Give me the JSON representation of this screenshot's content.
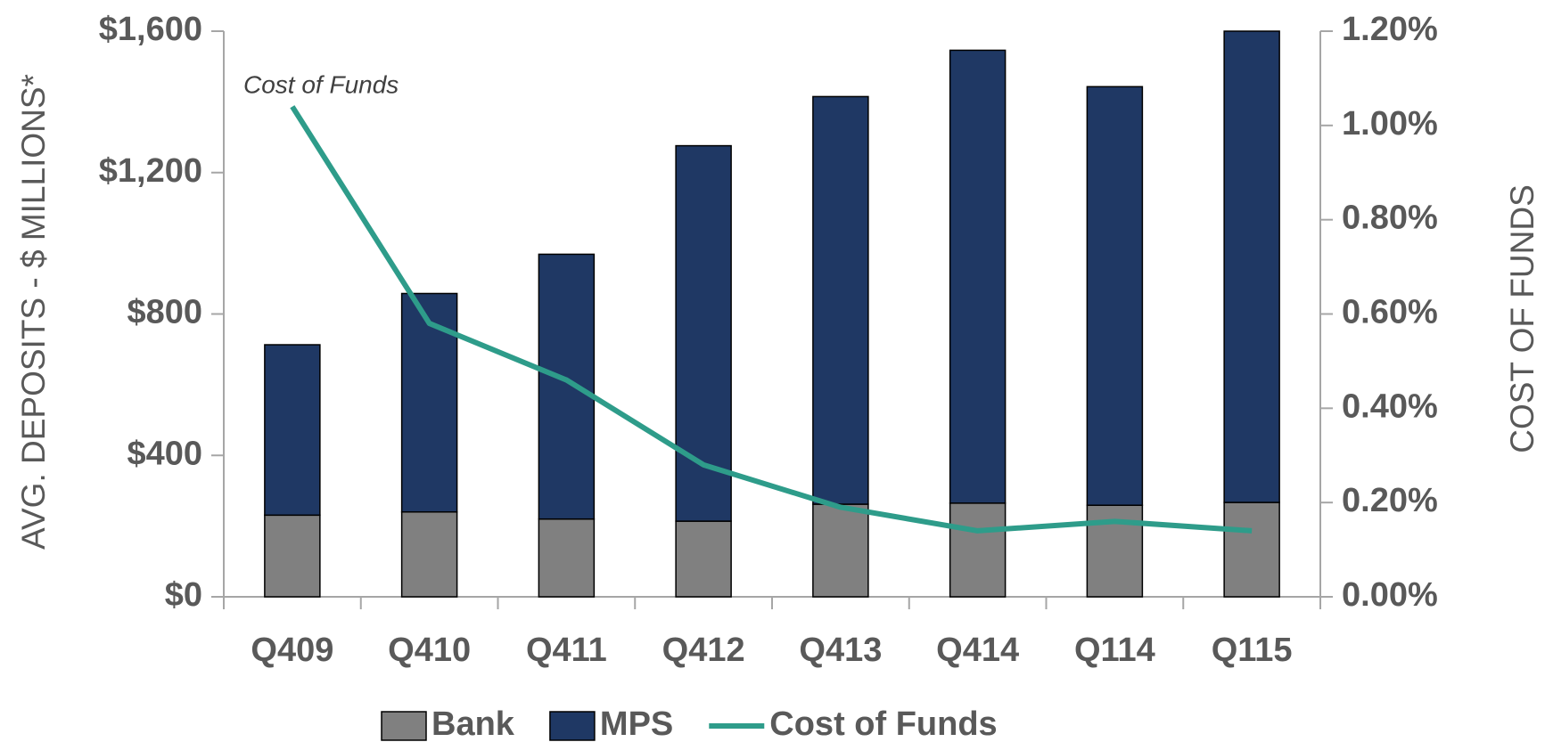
{
  "chart_data": {
    "type": "bar",
    "stacked": true,
    "categories": [
      "Q409",
      "Q410",
      "Q411",
      "Q412",
      "Q413",
      "Q414",
      "Q114",
      "Q115"
    ],
    "series": [
      {
        "name": "Bank",
        "type": "bar",
        "color": "#808080",
        "values": [
          231,
          240,
          220,
          214,
          262,
          265,
          259,
          267
        ]
      },
      {
        "name": "MPS",
        "type": "bar",
        "color": "#1f3864",
        "values": [
          482,
          618,
          749,
          1062,
          1153,
          1281,
          1184,
          1333
        ]
      },
      {
        "name": "Cost of Funds",
        "type": "line",
        "axis": "y2",
        "color": "#2e9c8a",
        "values": [
          1.04,
          0.58,
          0.46,
          0.28,
          0.19,
          0.14,
          0.16,
          0.14
        ]
      }
    ],
    "ylabel": "AVG. DEPOSITS - $ MILLIONS*",
    "y2label": "COST OF FUNDS",
    "annotation": "Cost of Funds",
    "ylim": [
      0,
      1600
    ],
    "yticks": [
      {
        "value": 0,
        "label": "$0"
      },
      {
        "value": 400,
        "label": "$400"
      },
      {
        "value": 800,
        "label": "$800"
      },
      {
        "value": 1200,
        "label": "$1,200"
      },
      {
        "value": 1600,
        "label": "$1,600"
      }
    ],
    "y2lim": [
      0,
      1.2
    ],
    "y2ticks": [
      {
        "value": 0,
        "label": "0.00%"
      },
      {
        "value": 0.2,
        "label": "0.20%"
      },
      {
        "value": 0.4,
        "label": "0.40%"
      },
      {
        "value": 0.6,
        "label": "0.60%"
      },
      {
        "value": 0.8,
        "label": "0.80%"
      },
      {
        "value": 1.0,
        "label": "1.00%"
      },
      {
        "value": 1.2,
        "label": "1.20%"
      }
    ],
    "legend": "bottom"
  }
}
